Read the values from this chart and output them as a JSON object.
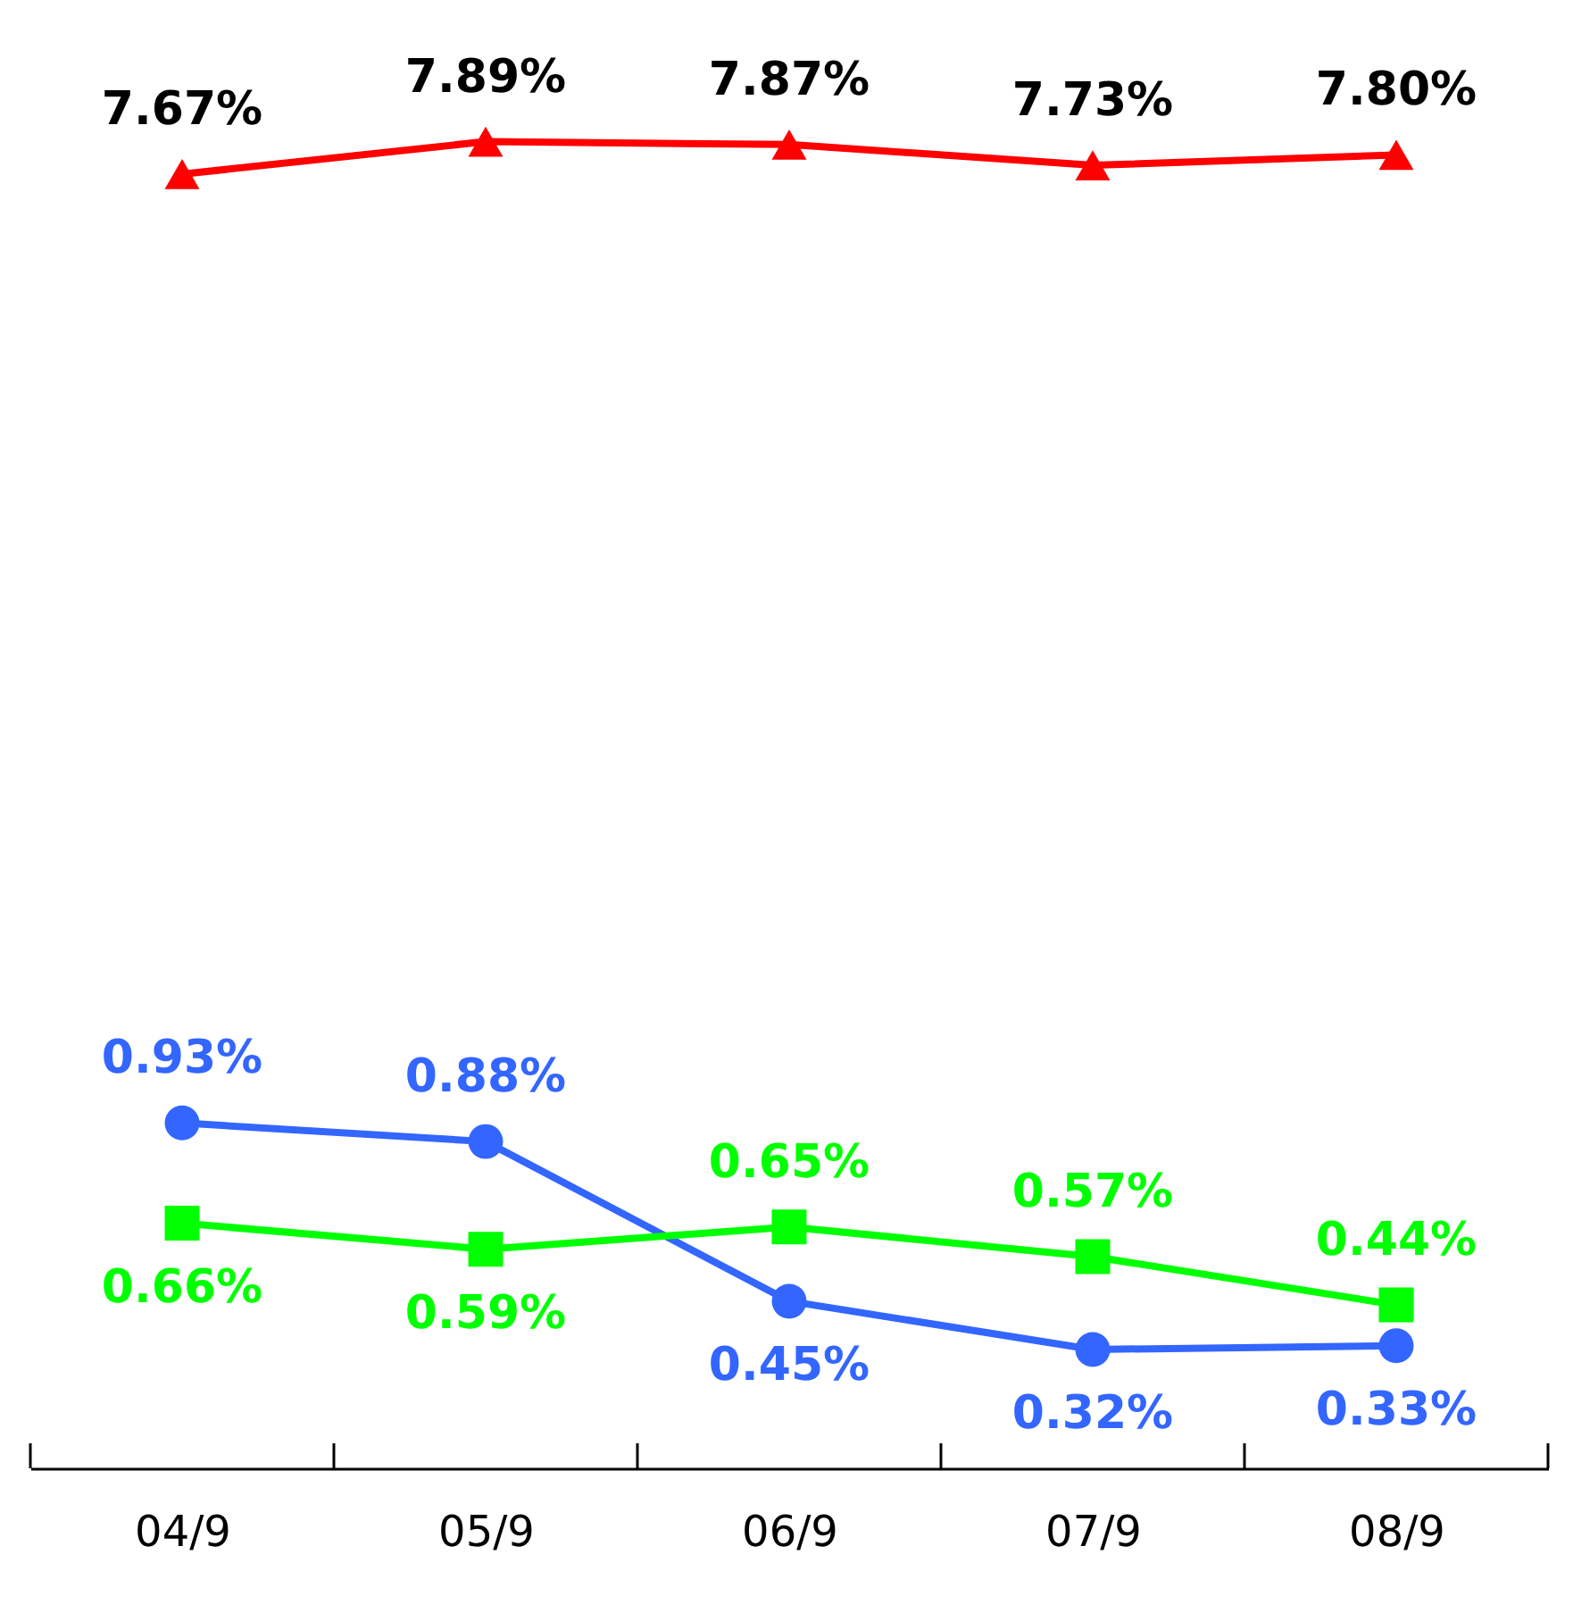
{
  "chart_data": [
    {
      "type": "line",
      "categories": [
        null,
        null,
        null,
        null,
        null
      ],
      "tick_labels": false,
      "series": [
        {
          "color": "#ff0000",
          "marker": "triangle",
          "values": [
            7.67,
            7.89,
            7.87,
            7.73,
            7.8
          ],
          "value_labels": [
            "7.67%",
            "7.89%",
            "7.87%",
            "7.73%",
            "7.80%"
          ]
        }
      ]
    },
    {
      "type": "line",
      "categories": [
        "04/9",
        "05/9",
        "06/9",
        "07/9",
        "08/9"
      ],
      "tick_labels": "x",
      "series": [
        {
          "color": "#3366ff",
          "marker": "circle",
          "values": [
            0.93,
            0.88,
            0.45,
            0.32,
            0.33
          ],
          "value_labels": [
            "0.93%",
            "0.88%",
            "0.45%",
            "0.32%",
            "0.33%"
          ]
        },
        {
          "color": "#00ff00",
          "marker": "square",
          "values": [
            0.66,
            0.59,
            0.65,
            0.57,
            0.44
          ],
          "value_labels": [
            "0.66%",
            "0.59%",
            "0.65%",
            "0.57%",
            "0.44%"
          ]
        }
      ]
    }
  ]
}
